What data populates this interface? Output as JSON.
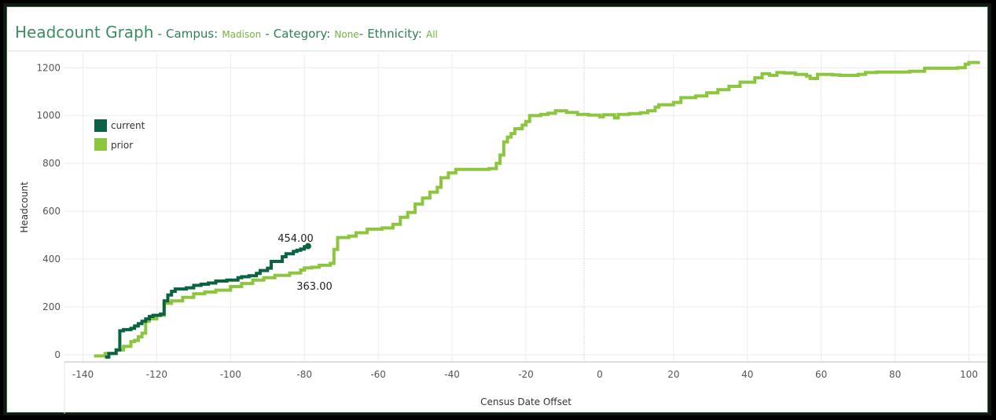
{
  "header": {
    "title": "Headcount Graph",
    "campus_label": "Campus:",
    "campus_value": "Madison",
    "category_label": "Category:",
    "category_value": "None",
    "ethnicity_label": "Ethnicity:",
    "ethnicity_value": "All",
    "separator": "-"
  },
  "chart_data": {
    "type": "line",
    "xlabel": "Census Date Offset",
    "ylabel": "Headcount",
    "xlim": [
      -145,
      105
    ],
    "ylim": [
      -30,
      1260
    ],
    "xticks": [
      -140,
      -120,
      -100,
      -80,
      -60,
      -40,
      -20,
      0,
      20,
      40,
      60,
      80,
      100
    ],
    "yticks": [
      0,
      200,
      400,
      600,
      800,
      1000,
      1200
    ],
    "grid": true,
    "legend_position": "top-left",
    "series": [
      {
        "name": "current",
        "color": "#0b6441",
        "step": true,
        "points": [
          [
            -134,
            -10
          ],
          [
            -133,
            5
          ],
          [
            -131,
            20
          ],
          [
            -130,
            100
          ],
          [
            -129,
            105
          ],
          [
            -127,
            110
          ],
          [
            -126,
            120
          ],
          [
            -125,
            130
          ],
          [
            -124,
            140
          ],
          [
            -123,
            150
          ],
          [
            -122,
            160
          ],
          [
            -121,
            165
          ],
          [
            -119,
            170
          ],
          [
            -118,
            225
          ],
          [
            -117,
            250
          ],
          [
            -116,
            265
          ],
          [
            -115,
            275
          ],
          [
            -112,
            280
          ],
          [
            -110,
            290
          ],
          [
            -108,
            295
          ],
          [
            -106,
            300
          ],
          [
            -104,
            308
          ],
          [
            -101,
            312
          ],
          [
            -98,
            322
          ],
          [
            -97,
            326
          ],
          [
            -95,
            330
          ],
          [
            -93,
            340
          ],
          [
            -92,
            352
          ],
          [
            -90,
            362
          ],
          [
            -89,
            390
          ],
          [
            -86,
            410
          ],
          [
            -85,
            422
          ],
          [
            -83,
            432
          ],
          [
            -82,
            437
          ],
          [
            -81,
            442
          ],
          [
            -80,
            452
          ],
          [
            -79,
            454
          ]
        ],
        "end_label": "454.00"
      },
      {
        "name": "prior",
        "color": "#8cc63f",
        "step": true,
        "points": [
          [
            -137,
            -5
          ],
          [
            -134,
            5
          ],
          [
            -131,
            20
          ],
          [
            -129,
            35
          ],
          [
            -127,
            55
          ],
          [
            -126,
            60
          ],
          [
            -125,
            75
          ],
          [
            -124,
            90
          ],
          [
            -123,
            140
          ],
          [
            -122,
            150
          ],
          [
            -120,
            165
          ],
          [
            -118,
            215
          ],
          [
            -116,
            225
          ],
          [
            -113,
            240
          ],
          [
            -110,
            255
          ],
          [
            -107,
            262
          ],
          [
            -104,
            270
          ],
          [
            -100,
            285
          ],
          [
            -97,
            298
          ],
          [
            -94,
            312
          ],
          [
            -91,
            322
          ],
          [
            -88,
            332
          ],
          [
            -84,
            342
          ],
          [
            -81,
            354
          ],
          [
            -80,
            363
          ],
          [
            -78,
            366
          ],
          [
            -76,
            374
          ],
          [
            -73,
            382
          ],
          [
            -72,
            440
          ],
          [
            -71,
            490
          ],
          [
            -68,
            496
          ],
          [
            -66,
            510
          ],
          [
            -63,
            525
          ],
          [
            -59,
            530
          ],
          [
            -56,
            545
          ],
          [
            -54,
            575
          ],
          [
            -52,
            595
          ],
          [
            -50,
            630
          ],
          [
            -48,
            655
          ],
          [
            -46,
            680
          ],
          [
            -44,
            700
          ],
          [
            -43,
            740
          ],
          [
            -41,
            760
          ],
          [
            -39,
            775
          ],
          [
            -30,
            778
          ],
          [
            -28,
            800
          ],
          [
            -27,
            835
          ],
          [
            -26,
            890
          ],
          [
            -25,
            910
          ],
          [
            -24,
            925
          ],
          [
            -23,
            945
          ],
          [
            -21,
            960
          ],
          [
            -20,
            975
          ],
          [
            -19,
            1000
          ],
          [
            -16,
            1005
          ],
          [
            -14,
            1010
          ],
          [
            -12,
            1020
          ],
          [
            -9,
            1013
          ],
          [
            -6,
            1005
          ],
          [
            -3,
            1002
          ],
          [
            0,
            995
          ],
          [
            1,
            1003
          ],
          [
            4,
            990
          ],
          [
            5,
            1005
          ],
          [
            8,
            1008
          ],
          [
            11,
            1012
          ],
          [
            13,
            1020
          ],
          [
            15,
            1035
          ],
          [
            16,
            1045
          ],
          [
            20,
            1055
          ],
          [
            22,
            1075
          ],
          [
            26,
            1082
          ],
          [
            29,
            1095
          ],
          [
            32,
            1108
          ],
          [
            35,
            1122
          ],
          [
            38,
            1140
          ],
          [
            42,
            1158
          ],
          [
            44,
            1175
          ],
          [
            46,
            1168
          ],
          [
            48,
            1180
          ],
          [
            50,
            1178
          ],
          [
            53,
            1172
          ],
          [
            56,
            1165
          ],
          [
            57,
            1155
          ],
          [
            59,
            1172
          ],
          [
            63,
            1170
          ],
          [
            65,
            1168
          ],
          [
            70,
            1172
          ],
          [
            72,
            1180
          ],
          [
            75,
            1182
          ],
          [
            84,
            1185
          ],
          [
            88,
            1198
          ],
          [
            97,
            1200
          ],
          [
            99,
            1215
          ],
          [
            100,
            1222
          ],
          [
            103,
            1222
          ]
        ],
        "end_label": "363.00"
      }
    ]
  }
}
